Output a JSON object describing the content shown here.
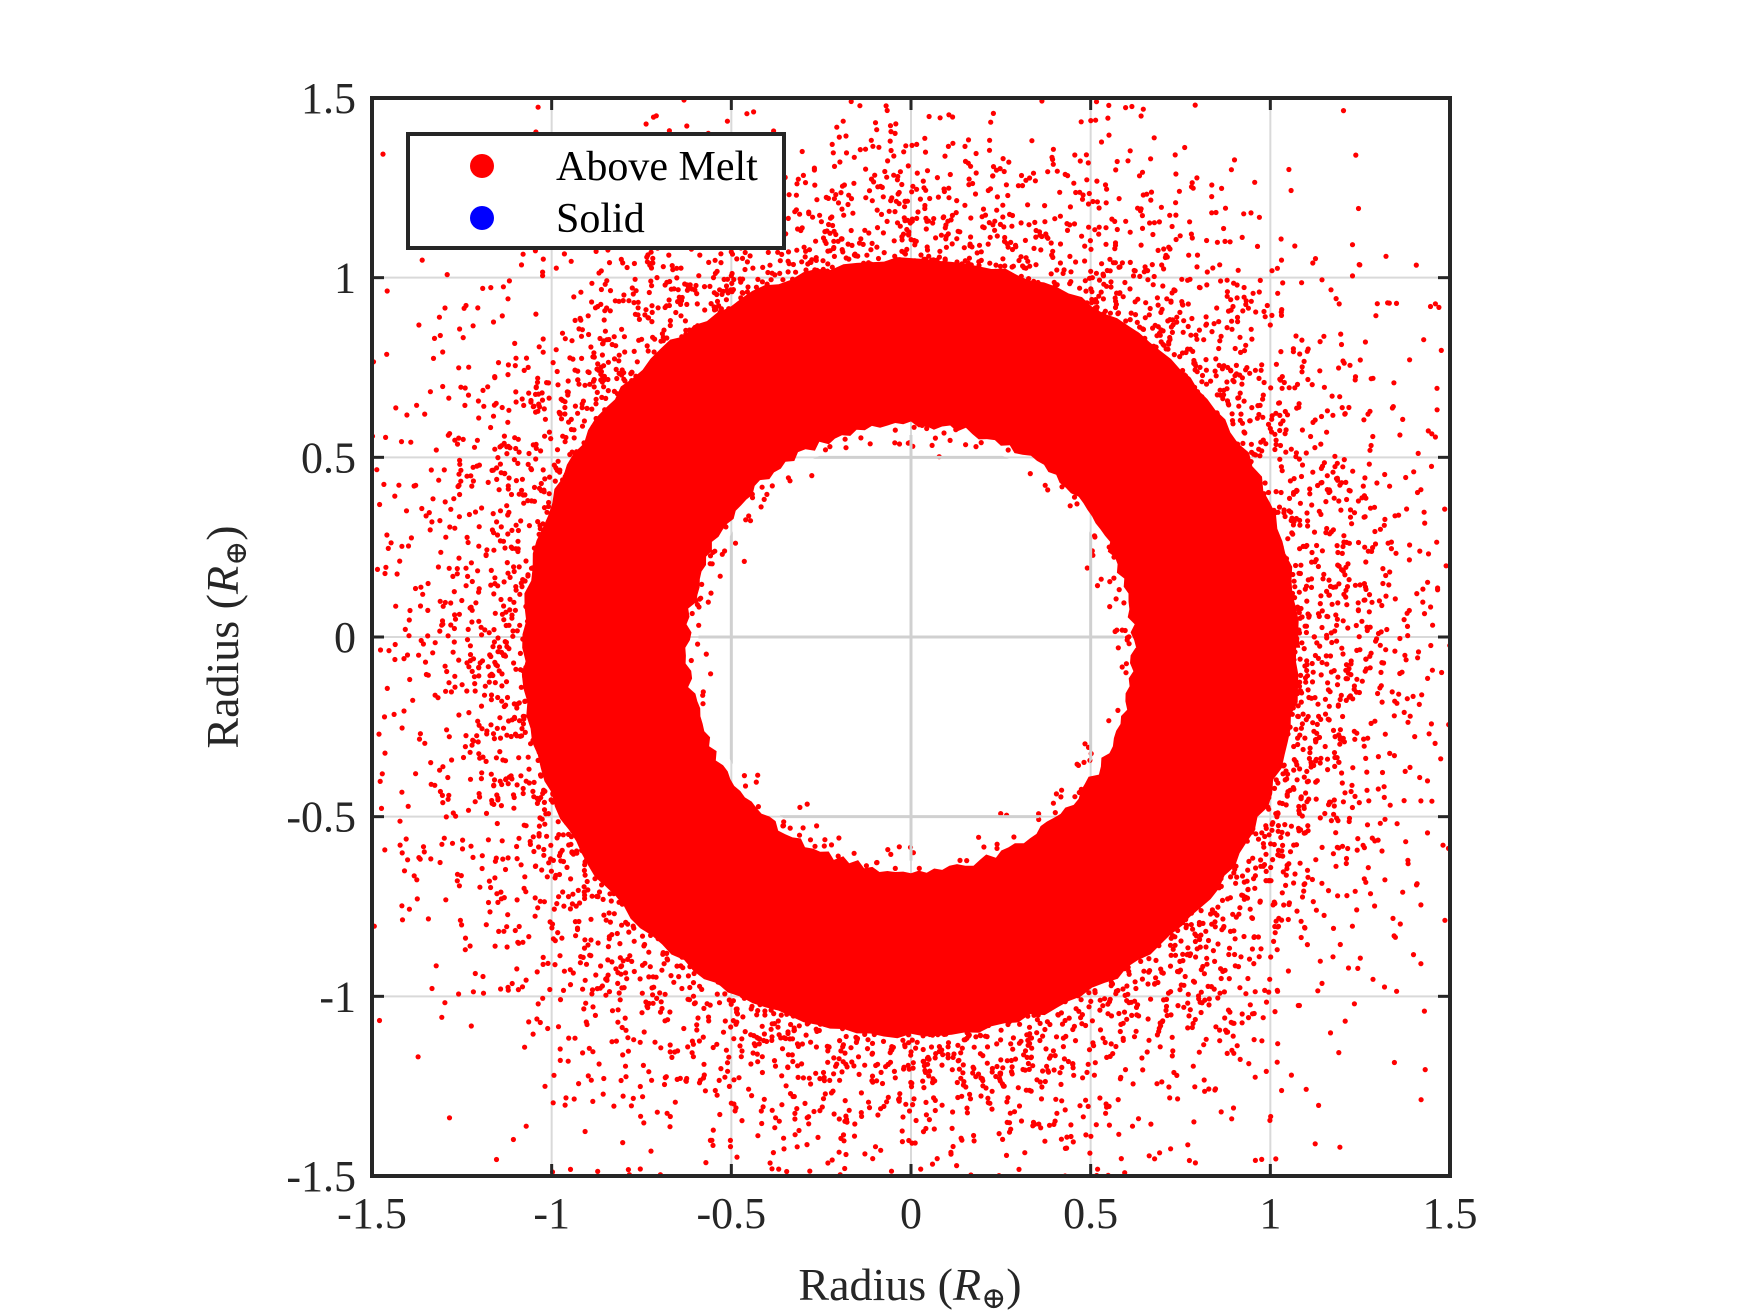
{
  "chart_data": {
    "type": "scatter",
    "title": "",
    "xlabel": "Radius (R⊕)",
    "ylabel": "Radius (R⊕)",
    "xlabel_parts": {
      "text": "Radius (",
      "symbol": "R",
      "subscript": "⊕",
      "close": ")"
    },
    "ylabel_parts": {
      "text": "Radius (",
      "symbol": "R",
      "subscript": "⊕",
      "close": ")"
    },
    "xlim": [
      -1.5,
      1.5
    ],
    "ylim": [
      -1.5,
      1.5
    ],
    "xticks": [
      -1.5,
      -1,
      -0.5,
      0,
      0.5,
      1,
      1.5
    ],
    "yticks": [
      -1.5,
      -1,
      -0.5,
      0,
      0.5,
      1,
      1.5
    ],
    "xtick_labels": [
      "-1.5",
      "-1",
      "-0.5",
      "0",
      "0.5",
      "1",
      "1.5"
    ],
    "ytick_labels": [
      "-1.5",
      "-1",
      "-0.5",
      "0",
      "0.5",
      "1",
      "1.5"
    ],
    "grid": true,
    "legend": {
      "placement": "top-left",
      "entries": [
        {
          "label": "Above Melt",
          "color": "#ff0000"
        },
        {
          "label": "Solid",
          "color": "#0000ff"
        }
      ]
    },
    "series": [
      {
        "name": "Above Melt",
        "color": "#ff0000",
        "distribution": {
          "shape": "annulus",
          "center": [
            0,
            -0.03
          ],
          "inner_radius": 0.62,
          "dense_outer_radius": 1.08,
          "sparse_outer_radius": 1.5
        }
      },
      {
        "name": "Solid",
        "color": "#0000ff",
        "distribution": null
      }
    ]
  }
}
